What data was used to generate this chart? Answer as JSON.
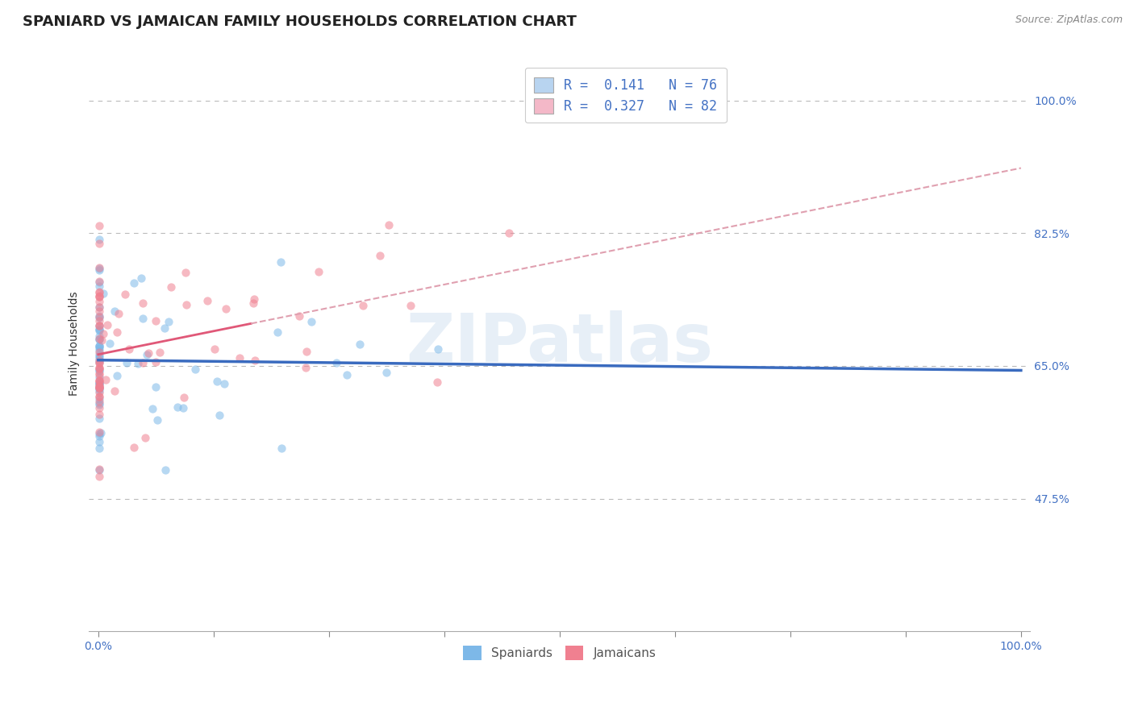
{
  "title": "SPANIARD VS JAMAICAN FAMILY HOUSEHOLDS CORRELATION CHART",
  "source": "Source: ZipAtlas.com",
  "ylabel": "Family Households",
  "ytick_labels": [
    "47.5%",
    "65.0%",
    "82.5%",
    "100.0%"
  ],
  "ytick_values": [
    0.475,
    0.65,
    0.825,
    1.0
  ],
  "xlim": [
    -0.01,
    1.01
  ],
  "ylim": [
    0.3,
    1.06
  ],
  "spaniard_color": "#7db8e8",
  "jamaican_color": "#f08090",
  "trendline_spaniard_color": "#3a6bbf",
  "trendline_jamaican_color": "#e05878",
  "trendline_jamaican_dashed_color": "#e0a0b0",
  "watermark": "ZIPatlas",
  "r_spaniard": 0.141,
  "r_jamaican": 0.327,
  "n_spaniard": 76,
  "n_jamaican": 82,
  "title_fontsize": 13,
  "axis_label_fontsize": 10,
  "tick_fontsize": 10,
  "legend_fontsize": 12,
  "dot_size": 55,
  "dot_alpha": 0.55,
  "background_color": "#ffffff",
  "grid_color": "#bbbbbb",
  "tick_color": "#4472c4",
  "legend_text_color": "#4472c4",
  "legend_box_color_sp": "#b8d4f0",
  "legend_box_color_ja": "#f4b8c8"
}
